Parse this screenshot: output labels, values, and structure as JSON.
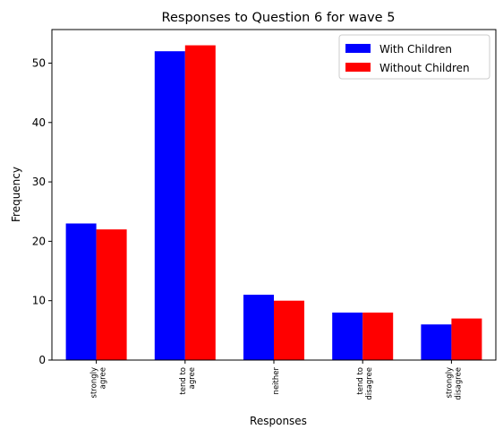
{
  "chart_data": {
    "type": "bar",
    "title": "Responses to Question 6 for wave 5",
    "xlabel": "Responses",
    "ylabel": "Frequency",
    "categories": [
      [
        "strongly",
        "agree"
      ],
      [
        "tend to",
        "agree"
      ],
      [
        "neither"
      ],
      [
        "tend to",
        "disagree"
      ],
      [
        "strongly",
        "disagree"
      ]
    ],
    "series": [
      {
        "name": "With Children",
        "color": "#0000ff",
        "values": [
          23,
          52,
          11,
          8,
          6
        ]
      },
      {
        "name": "Without Children",
        "color": "#ff0000",
        "values": [
          22,
          53,
          10,
          8,
          7
        ]
      }
    ],
    "ylim": [
      0,
      55.65
    ],
    "yticks": [
      0,
      10,
      20,
      30,
      40,
      50
    ],
    "legend": "top-right",
    "grid": false
  }
}
